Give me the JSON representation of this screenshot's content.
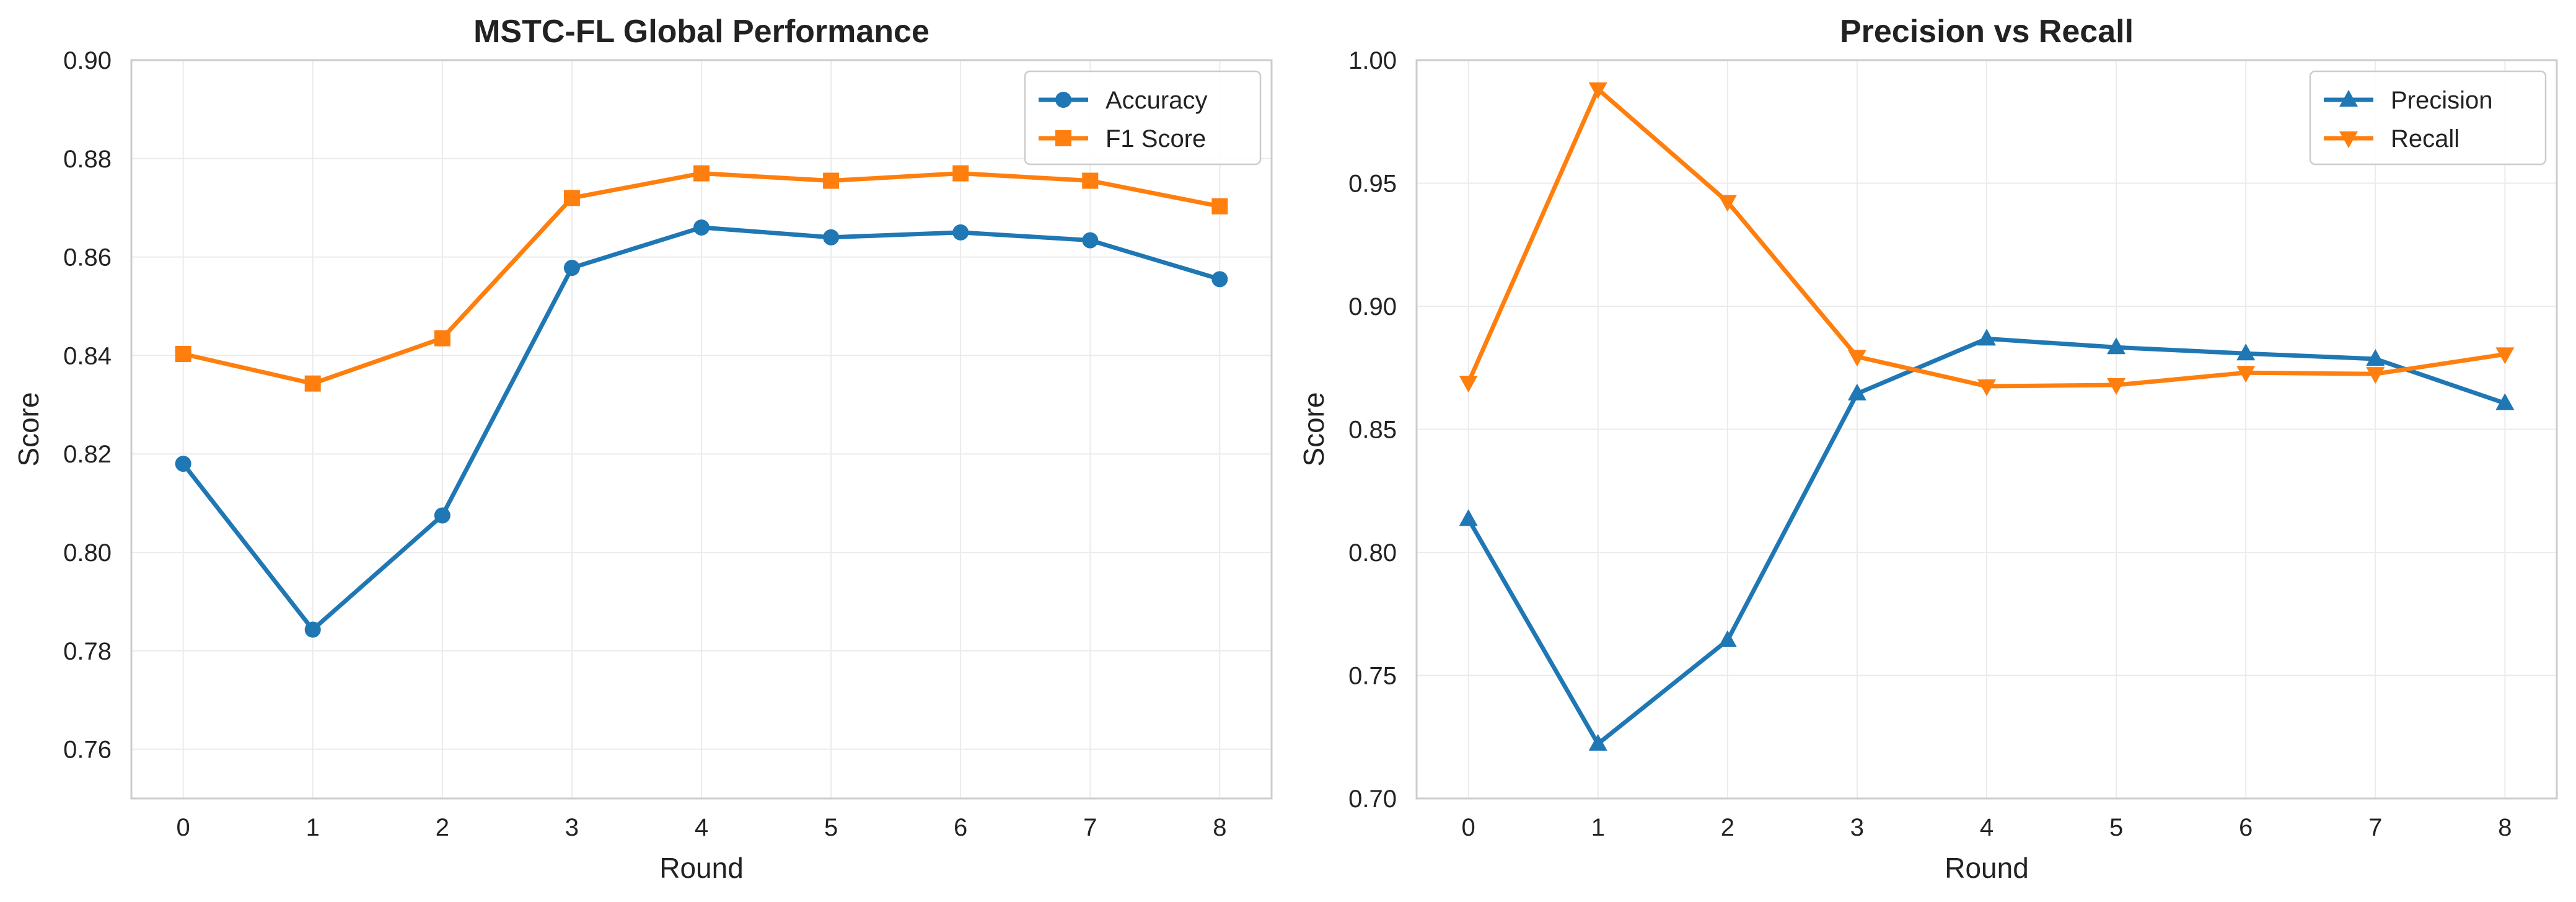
{
  "chart_data": [
    {
      "type": "line",
      "title": "MSTC-FL Global Performance",
      "xlabel": "Round",
      "ylabel": "Score",
      "x": [
        0,
        1,
        2,
        3,
        4,
        5,
        6,
        7,
        8
      ],
      "xlim": [
        -0.4,
        8.4
      ],
      "ylim": [
        0.75,
        0.9
      ],
      "yticks": [
        0.76,
        0.78,
        0.8,
        0.82,
        0.84,
        0.86,
        0.88,
        0.9
      ],
      "ytick_labels": [
        "0.76",
        "0.78",
        "0.80",
        "0.82",
        "0.84",
        "0.86",
        "0.88",
        "0.90"
      ],
      "xticks": [
        0,
        1,
        2,
        3,
        4,
        5,
        6,
        7,
        8
      ],
      "xtick_labels": [
        "0",
        "1",
        "2",
        "3",
        "4",
        "5",
        "6",
        "7",
        "8"
      ],
      "grid": true,
      "legend_position": "top-right",
      "series": [
        {
          "name": "Accuracy",
          "color": "#1f77b4",
          "marker": "circle",
          "values": [
            0.818,
            0.7843,
            0.8075,
            0.8578,
            0.866,
            0.864,
            0.865,
            0.8634,
            0.8555
          ]
        },
        {
          "name": "F1 Score",
          "color": "#ff7f0e",
          "marker": "square",
          "values": [
            0.8403,
            0.8343,
            0.8435,
            0.872,
            0.877,
            0.8755,
            0.877,
            0.8755,
            0.8703
          ]
        }
      ]
    },
    {
      "type": "line",
      "title": "Precision vs Recall",
      "xlabel": "Round",
      "ylabel": "Score",
      "x": [
        0,
        1,
        2,
        3,
        4,
        5,
        6,
        7,
        8
      ],
      "xlim": [
        -0.4,
        8.4
      ],
      "ylim": [
        0.7,
        1.0
      ],
      "yticks": [
        0.7,
        0.75,
        0.8,
        0.85,
        0.9,
        0.95,
        1.0
      ],
      "ytick_labels": [
        "0.70",
        "0.75",
        "0.80",
        "0.85",
        "0.90",
        "0.95",
        "1.00"
      ],
      "xticks": [
        0,
        1,
        2,
        3,
        4,
        5,
        6,
        7,
        8
      ],
      "xtick_labels": [
        "0",
        "1",
        "2",
        "3",
        "4",
        "5",
        "6",
        "7",
        "8"
      ],
      "grid": true,
      "legend_position": "top-right",
      "series": [
        {
          "name": "Precision",
          "color": "#1f77b4",
          "marker": "triangle-up",
          "values": [
            0.8135,
            0.7222,
            0.7643,
            0.8645,
            0.8868,
            0.8833,
            0.8808,
            0.8786,
            0.8606
          ]
        },
        {
          "name": "Recall",
          "color": "#ff7f0e",
          "marker": "triangle-down",
          "values": [
            0.869,
            0.9882,
            0.9424,
            0.8795,
            0.8675,
            0.868,
            0.873,
            0.8725,
            0.8805
          ]
        }
      ]
    }
  ]
}
